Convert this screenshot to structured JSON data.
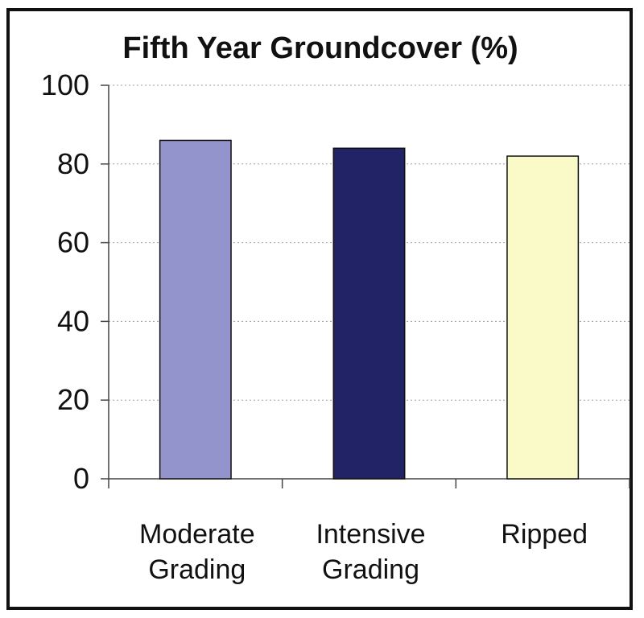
{
  "chart_data": {
    "type": "bar",
    "title": "Fifth Year Groundcover (%)",
    "categories": [
      [
        "Moderate",
        "Grading"
      ],
      [
        "Intensive",
        "Grading"
      ],
      [
        "Ripped"
      ]
    ],
    "values": [
      86,
      84,
      82
    ],
    "bar_colors": [
      "#9494cc",
      "#222266",
      "#fafac8"
    ],
    "ylim": [
      0,
      100
    ],
    "yticks": [
      "0",
      "20",
      "40",
      "60",
      "80",
      "100"
    ],
    "grid": true,
    "legend": "none"
  },
  "colors": {
    "bar_outline": "#111111",
    "axis": "#444444",
    "gridline": "#9a9a9a",
    "frame": "#111111"
  }
}
